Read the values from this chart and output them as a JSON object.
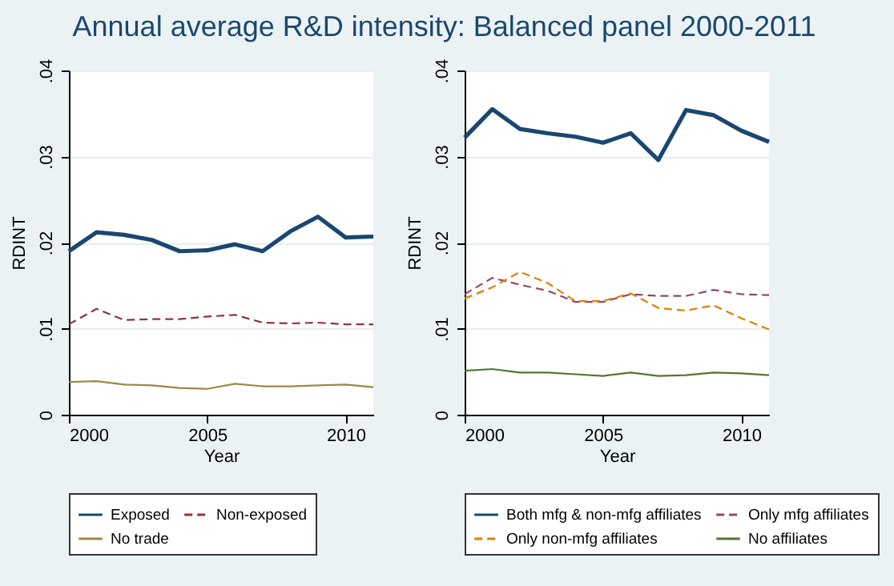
{
  "chart_data": [
    {
      "type": "line",
      "title": "Annual average R&D intensity: Balanced panel 2000-2011",
      "xlabel": "Year",
      "ylabel": "RDINT",
      "x": [
        2000,
        2001,
        2002,
        2003,
        2004,
        2005,
        2006,
        2007,
        2008,
        2009,
        2010,
        2011
      ],
      "xlim": [
        2000,
        2011
      ],
      "xticks": [
        2000,
        2005,
        2010
      ],
      "ylim": [
        0,
        0.04
      ],
      "yticks": [
        0,
        {
          "value": 0.01,
          "label": ".01"
        },
        {
          "value": 0.02,
          "label": ".02"
        },
        {
          "value": 0.03,
          "label": ".03"
        },
        {
          "value": 0.04,
          "label": ".04"
        }
      ],
      "grid": "y",
      "legend": "bottom",
      "series": [
        {
          "name": "Exposed",
          "color": "#1a476f",
          "line_style": "solid",
          "values": [
            0.019,
            0.0212,
            0.0209,
            0.0203,
            0.019,
            0.0191,
            0.0198,
            0.019,
            0.0213,
            0.023,
            0.0206,
            0.0207
          ]
        },
        {
          "name": "Non-exposed",
          "color": "#90353b",
          "line_style": "dashed",
          "values": [
            0.0105,
            0.0123,
            0.011,
            0.0111,
            0.0111,
            0.0114,
            0.0116,
            0.0107,
            0.0106,
            0.0107,
            0.0105,
            0.0105
          ]
        },
        {
          "name": "No trade",
          "color": "#9c8847",
          "line_style": "solid",
          "values": [
            0.0038,
            0.0039,
            0.0035,
            0.0034,
            0.0031,
            0.003,
            0.0036,
            0.0033,
            0.0033,
            0.0034,
            0.0035,
            0.0032
          ]
        }
      ]
    },
    {
      "type": "line",
      "xlabel": "Year",
      "ylabel": "RDINT",
      "x": [
        2000,
        2001,
        2002,
        2003,
        2004,
        2005,
        2006,
        2007,
        2008,
        2009,
        2010,
        2011
      ],
      "xlim": [
        2000,
        2011
      ],
      "xticks": [
        2000,
        2005,
        2010
      ],
      "ylim": [
        0,
        0.04
      ],
      "yticks": [
        0,
        {
          "value": 0.01,
          "label": ".01"
        },
        {
          "value": 0.02,
          "label": ".02"
        },
        {
          "value": 0.03,
          "label": ".03"
        },
        {
          "value": 0.04,
          "label": ".04"
        }
      ],
      "grid": "y",
      "legend": "bottom",
      "series": [
        {
          "name": "Both mfg & non-mfg affiliates",
          "color": "#1a476f",
          "line_style": "solid",
          "values": [
            0.0322,
            0.0355,
            0.0332,
            0.0327,
            0.0323,
            0.0316,
            0.0327,
            0.0296,
            0.0354,
            0.0348,
            0.033,
            0.0317
          ]
        },
        {
          "name": "Only mfg affiliates",
          "color": "#8e4a6e",
          "line_style": "dashed",
          "values": [
            0.014,
            0.0159,
            0.0151,
            0.0144,
            0.0131,
            0.0131,
            0.014,
            0.0138,
            0.0138,
            0.0145,
            0.014,
            0.0139
          ]
        },
        {
          "name": "Only non-mfg affiliates",
          "color": "#e37e00",
          "line_style": "dashed",
          "values": [
            0.0135,
            0.0148,
            0.0166,
            0.0153,
            0.0132,
            0.0132,
            0.0141,
            0.0124,
            0.0121,
            0.0127,
            0.0112,
            0.0099
          ]
        },
        {
          "name": "No affiliates",
          "color": "#55752f",
          "line_style": "solid",
          "values": [
            0.0051,
            0.0053,
            0.0049,
            0.0049,
            0.0047,
            0.0045,
            0.0049,
            0.0045,
            0.0046,
            0.0049,
            0.0048,
            0.0046
          ]
        }
      ]
    }
  ]
}
